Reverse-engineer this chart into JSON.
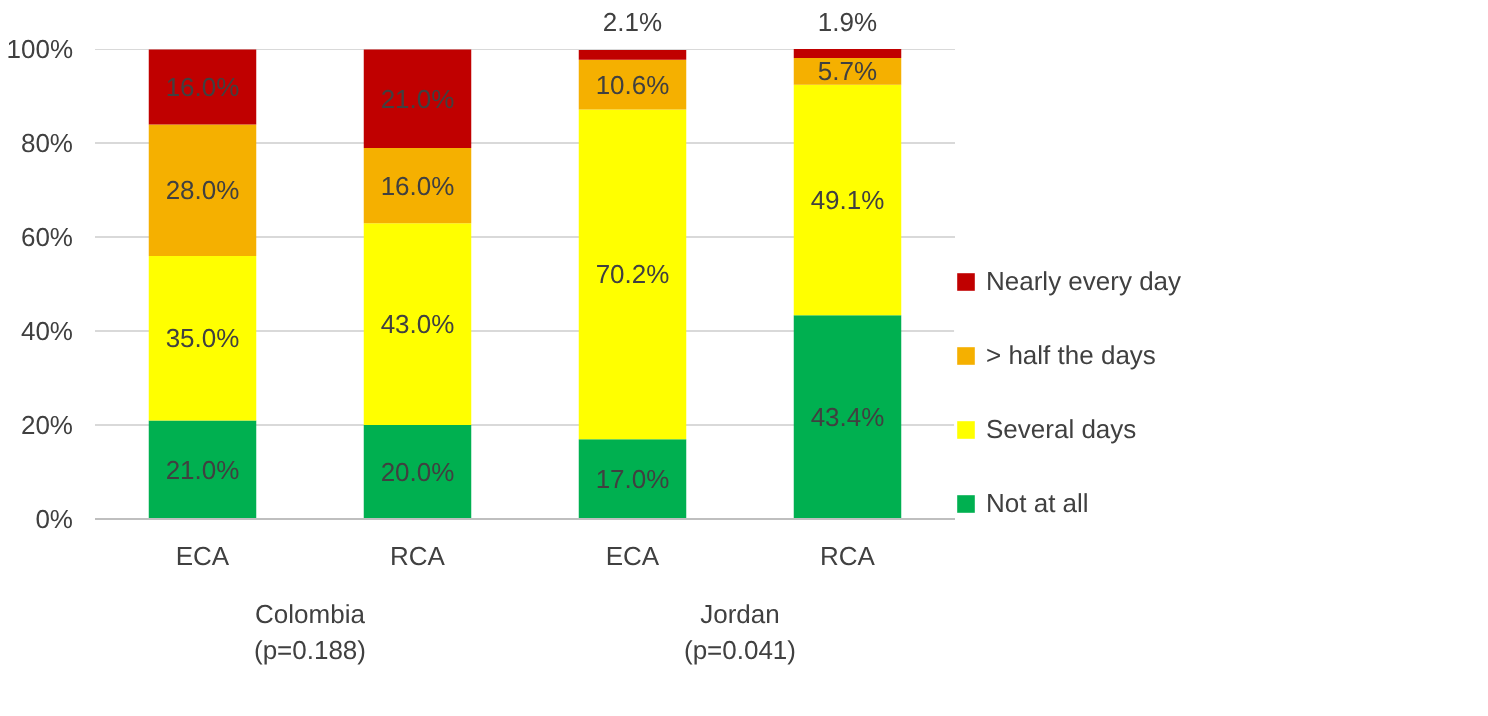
{
  "chart_data": {
    "type": "bar",
    "stacked": true,
    "categories": [
      "ECA",
      "RCA",
      "ECA",
      "RCA"
    ],
    "annotations": [
      "Colombia\n(p=0.188)",
      "Jordan\n(p=0.041)"
    ],
    "ylim": [
      0,
      100.1
    ],
    "yticks": [
      {
        "value": 0,
        "label": "0%"
      },
      {
        "value": 20,
        "label": "20%"
      },
      {
        "value": 40,
        "label": "40%"
      },
      {
        "value": 60,
        "label": "60%"
      },
      {
        "value": 80,
        "label": "80%"
      },
      {
        "value": 100,
        "label": "100%"
      }
    ],
    "grid": "y",
    "legend": "right",
    "series": [
      {
        "name": "Not at all",
        "color": "#00b050",
        "values": [
          21.0,
          20.0,
          17.0,
          43.4
        ],
        "value_labels": [
          "21.0%",
          "20.0%",
          "17.0%",
          "43.4%"
        ]
      },
      {
        "name": "Several days",
        "color": "#ffff00",
        "values": [
          35.0,
          43.0,
          70.2,
          49.1
        ],
        "value_labels": [
          "35.0%",
          "43.0%",
          "70.2%",
          "49.1%"
        ]
      },
      {
        "name": "> half the days",
        "color": "#f5b000",
        "values": [
          28.0,
          16.0,
          10.6,
          5.7
        ],
        "value_labels": [
          "28.0%",
          "16.0%",
          "10.6%",
          "5.7%"
        ]
      },
      {
        "name": "Nearly every day",
        "color": "#c00000",
        "values": [
          16.0,
          21.0,
          2.1,
          1.9
        ],
        "value_labels": [
          "16.0%",
          "21.0%",
          "2.1%",
          "1.9%"
        ]
      }
    ]
  }
}
